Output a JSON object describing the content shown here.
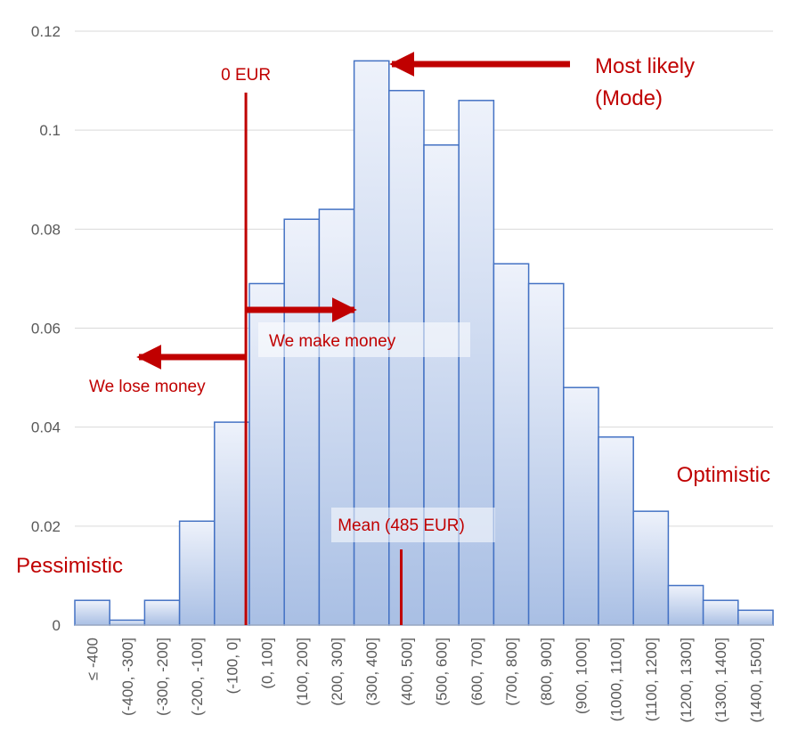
{
  "chart_data": {
    "type": "bar",
    "title": "",
    "xlabel": "",
    "ylabel": "",
    "ylim": [
      0,
      0.12
    ],
    "yticks": [
      {
        "value": 0,
        "label": "0"
      },
      {
        "value": 0.02,
        "label": "0.02"
      },
      {
        "value": 0.04,
        "label": "0.04"
      },
      {
        "value": 0.06,
        "label": "0.06"
      },
      {
        "value": 0.08,
        "label": "0.08"
      },
      {
        "value": 0.1,
        "label": "0.1"
      },
      {
        "value": 0.12,
        "label": "0.12"
      }
    ],
    "grid": true,
    "categories": [
      "≤ -400",
      "(-400, -300]",
      "(-300, -200]",
      "(-200, -100]",
      "(-100, 0]",
      "(0, 100]",
      "(100, 200]",
      "(200, 300]",
      "(300, 400]",
      "(400, 500]",
      "(500, 600]",
      "(600, 700]",
      "(700, 800]",
      "(800, 900]",
      "(900, 1000]",
      "(1000, 1100]",
      "(1100, 1200]",
      "(1200, 1300]",
      "(1300, 1400]",
      "(1400, 1500]"
    ],
    "values": [
      0.005,
      0.001,
      0.005,
      0.021,
      0.041,
      0.069,
      0.082,
      0.084,
      0.114,
      0.108,
      0.097,
      0.106,
      0.073,
      0.069,
      0.048,
      0.038,
      0.023,
      0.008,
      0.005,
      0.003
    ],
    "reference_lines": [
      {
        "name": "zero",
        "label": "0 EUR",
        "category_boundary": 4.9
      },
      {
        "name": "mean",
        "label": "Mean (485 EUR)",
        "category_position": 9.35
      }
    ],
    "annotations": {
      "mode": "Most likely\n(Mode)",
      "make_money": "We make money",
      "lose_money": "We lose money",
      "optimistic": "Optimistic",
      "pessimistic": "Pessimistic"
    }
  },
  "colors": {
    "bar_fill_top": "#eef2fb",
    "bar_fill_bottom": "#a9bfe4",
    "bar_stroke": "#4472c4",
    "annotation": "#c00000",
    "axis_text": "#595959",
    "grid": "#d9d9d9"
  }
}
